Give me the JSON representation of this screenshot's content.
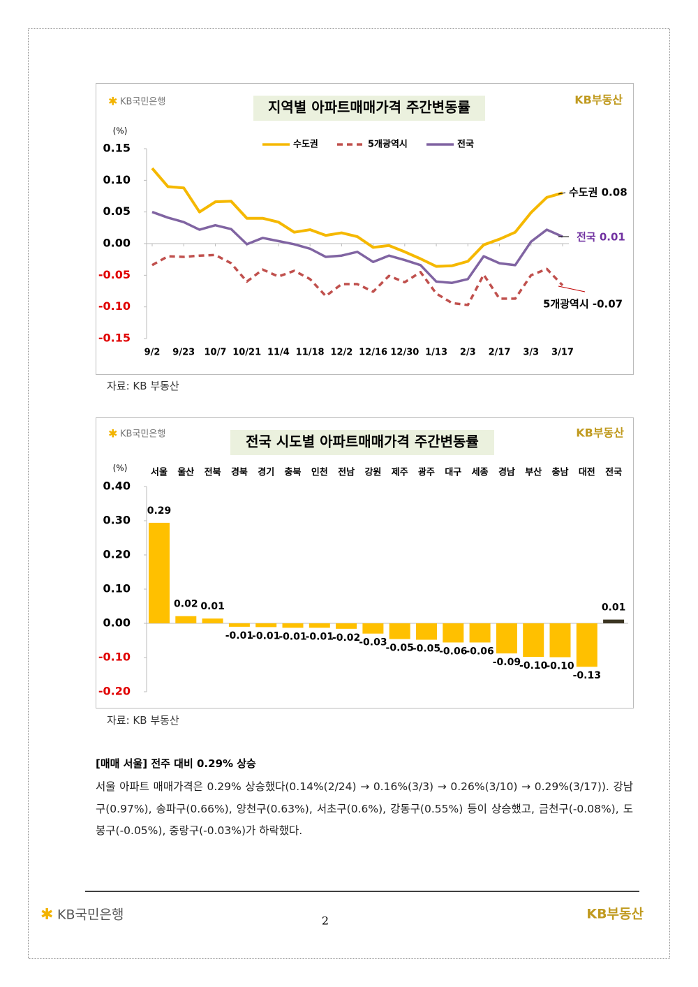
{
  "chart_data": [
    {
      "type": "line",
      "title": "지역별 아파트매매가격 주간변동률",
      "logo_left": "KB국민은행",
      "logo_right": "KB부동산",
      "y_unit": "(%)",
      "categories": [
        "9/2",
        null,
        "9/23",
        null,
        "10/7",
        null,
        "10/21",
        null,
        "11/4",
        null,
        "11/18",
        null,
        "12/2",
        null,
        "12/16",
        null,
        "12/30",
        null,
        "1/13",
        null,
        "2/3",
        null,
        "2/17",
        null,
        "3/3",
        null,
        "3/17"
      ],
      "series": [
        {
          "name": "수도권",
          "color": "#f5b800",
          "line_style": "solid",
          "values": [
            0.119,
            0.09,
            0.088,
            0.05,
            0.066,
            0.067,
            0.04,
            0.04,
            0.034,
            0.018,
            0.022,
            0.013,
            0.017,
            0.011,
            -0.006,
            -0.003,
            -0.013,
            -0.024,
            -0.036,
            -0.035,
            -0.028,
            -0.002,
            0.007,
            0.018,
            0.049,
            0.073,
            0.08
          ]
        },
        {
          "name": "5개광역시",
          "color": "#c0504d",
          "line_style": "dashed",
          "values": [
            -0.034,
            -0.02,
            -0.021,
            -0.019,
            -0.018,
            -0.031,
            -0.06,
            -0.041,
            -0.052,
            -0.043,
            -0.056,
            -0.083,
            -0.064,
            -0.064,
            -0.076,
            -0.051,
            -0.061,
            -0.045,
            -0.079,
            -0.094,
            -0.097,
            -0.049,
            -0.087,
            -0.087,
            -0.05,
            -0.04,
            -0.066
          ]
        },
        {
          "name": "전국",
          "color": "#8064a2",
          "line_style": "solid",
          "values": [
            0.05,
            0.041,
            0.034,
            0.022,
            0.029,
            0.023,
            -0.001,
            0.009,
            0.004,
            -0.001,
            -0.008,
            -0.021,
            -0.019,
            -0.013,
            -0.029,
            -0.019,
            -0.026,
            -0.034,
            -0.06,
            -0.062,
            -0.056,
            -0.02,
            -0.031,
            -0.034,
            0.003,
            0.022,
            0.011
          ]
        }
      ],
      "annotations": [
        {
          "text": "수도권 0.08",
          "color": "#000000"
        },
        {
          "text": "전국 0.01",
          "color": "#7030a0"
        },
        {
          "text": "5개광역시 -0.07",
          "color": "#000000"
        }
      ],
      "ylim": [
        -0.15,
        0.15
      ],
      "yticks": [
        {
          "value": 0.15,
          "label": "0.15"
        },
        {
          "value": 0.1,
          "label": "0.10"
        },
        {
          "value": 0.05,
          "label": "0.05"
        },
        {
          "value": 0,
          "label": "0.00"
        },
        {
          "value": -0.05,
          "label": "-0.05"
        },
        {
          "value": -0.1,
          "label": "-0.10"
        },
        {
          "value": -0.15,
          "label": "-0.15"
        }
      ],
      "negative_tick_color": "#e00000",
      "legend": "top",
      "grid": false
    },
    {
      "type": "bar",
      "title": "전국 시도별 아파트매매가격 주간변동률",
      "logo_left": "KB국민은행",
      "logo_right": "KB부동산",
      "y_unit": "(%)",
      "categories": [
        "서울",
        "울산",
        "전북",
        "경북",
        "경기",
        "충북",
        "인천",
        "전남",
        "강원",
        "제주",
        "광주",
        "대구",
        "세종",
        "경남",
        "부산",
        "충남",
        "대전",
        "전국"
      ],
      "values": [
        0.294,
        0.021,
        0.014,
        -0.01,
        -0.011,
        -0.013,
        -0.013,
        -0.016,
        -0.03,
        -0.046,
        -0.048,
        -0.056,
        -0.056,
        -0.088,
        -0.098,
        -0.099,
        -0.127,
        0.011
      ],
      "value_labels": [
        "0.29",
        "0.02",
        "0.01",
        "-0.01",
        "-0.01",
        "-0.01",
        "-0.01",
        "-0.02",
        "-0.03",
        "-0.05",
        "-0.05",
        "-0.06",
        "-0.06",
        "-0.09",
        "-0.10",
        "-0.10",
        "-0.13",
        "0.01"
      ],
      "colors": [
        "#ffc000",
        "#ffc000",
        "#ffc000",
        "#ffc000",
        "#ffc000",
        "#ffc000",
        "#ffc000",
        "#ffc000",
        "#ffc000",
        "#ffc000",
        "#ffc000",
        "#ffc000",
        "#ffc000",
        "#ffc000",
        "#ffc000",
        "#ffc000",
        "#ffc000",
        "#3b3522"
      ],
      "ylim": [
        -0.2,
        0.4
      ],
      "yticks": [
        {
          "value": 0.4,
          "label": "0.40"
        },
        {
          "value": 0.3,
          "label": "0.30"
        },
        {
          "value": 0.2,
          "label": "0.20"
        },
        {
          "value": 0.1,
          "label": "0.10"
        },
        {
          "value": 0,
          "label": "0.00"
        },
        {
          "value": -0.1,
          "label": "-0.10"
        },
        {
          "value": -0.2,
          "label": "-0.20"
        }
      ],
      "negative_tick_color": "#e00000",
      "grid": false
    }
  ],
  "sources": [
    "자료: KB 부동산",
    "자료: KB 부동산"
  ],
  "heading": "[매매 서울] 전주 대비 0.29% 상승",
  "paragraph": "서울 아파트 매매가격은 0.29% 상승했다(0.14%(2/24) → 0.16%(3/3) → 0.26%(3/10) → 0.29%(3/17)). 강남구(0.97%), 송파구(0.66%), 양천구(0.63%), 서초구(0.6%), 강동구(0.55%) 등이 상승했고, 금천구(-0.08%), 도봉구(-0.05%), 중랑구(-0.03%)가 하락했다.",
  "footer": {
    "logo_left": "KB국민은행",
    "logo_right": "KB부동산",
    "page_number": "2"
  }
}
